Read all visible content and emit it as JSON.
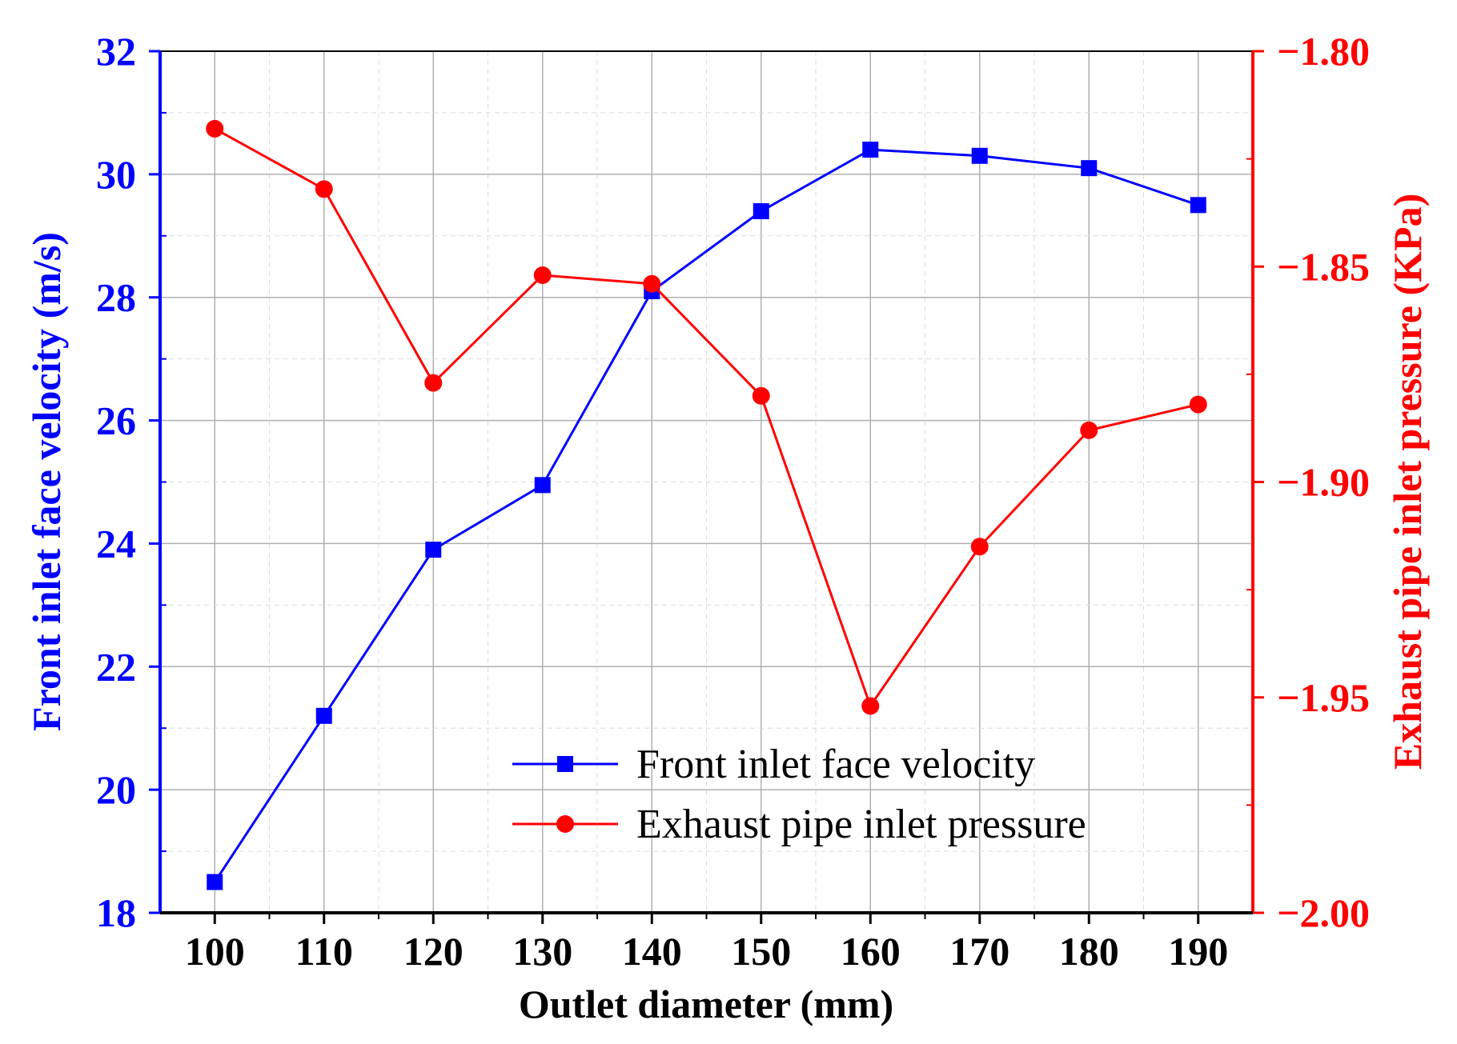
{
  "chart_data": {
    "type": "line",
    "x": [
      100,
      110,
      120,
      130,
      140,
      150,
      160,
      170,
      180,
      190
    ],
    "xlabel": "Outlet diameter (mm)",
    "xlim": [
      95,
      195
    ],
    "x_tick_labels": [
      "100",
      "110",
      "120",
      "130",
      "140",
      "150",
      "160",
      "170",
      "180",
      "190"
    ],
    "grid": true,
    "legend_position": "lower-center",
    "y_left": {
      "label": "Front inlet face velocity (m/s)",
      "ylim": [
        18,
        32
      ],
      "tick_labels": [
        "18",
        "20",
        "22",
        "24",
        "26",
        "28",
        "30",
        "32"
      ],
      "color": "#0000ff"
    },
    "y_right": {
      "label": "Exhaust pipe inlet pressure (KPa)",
      "ylim": [
        -2.0,
        -1.8
      ],
      "tick_labels": [
        "-2.00",
        "-1.95",
        "-1.90",
        "-1.85",
        "-1.80"
      ],
      "color": "#ff0000"
    },
    "series": [
      {
        "name": "Front inlet face velocity",
        "axis": "left",
        "marker": "square",
        "color": "#0000ff",
        "values": [
          18.5,
          21.2,
          23.9,
          24.95,
          28.1,
          29.4,
          30.4,
          30.3,
          30.1,
          29.5
        ]
      },
      {
        "name": "Exhaust pipe inlet pressure",
        "axis": "right",
        "marker": "circle",
        "color": "#ff0000",
        "values": [
          -1.818,
          -1.832,
          -1.877,
          -1.852,
          -1.854,
          -1.88,
          -1.952,
          -1.915,
          -1.888,
          -1.882
        ]
      }
    ]
  }
}
